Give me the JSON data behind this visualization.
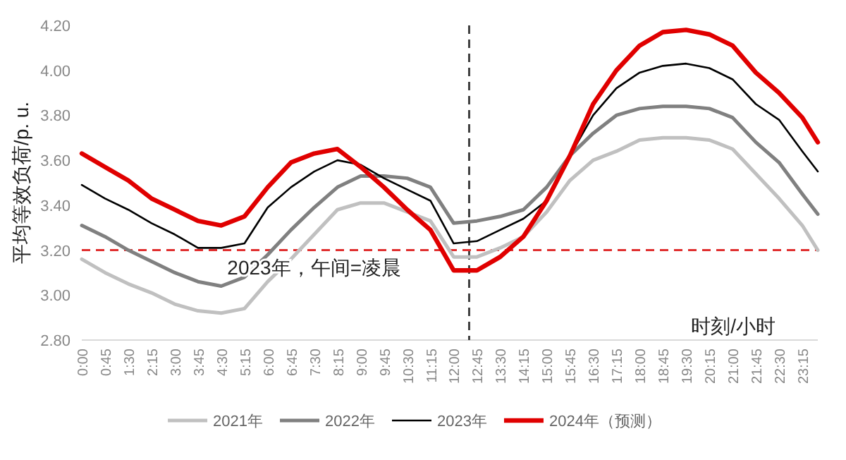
{
  "chart_data": {
    "type": "line",
    "ylabel": "平均等效负荷/p. u.",
    "xlabel": "时刻/小时",
    "xlim": [
      0,
      23.75
    ],
    "xticks": [
      {
        "value": 0,
        "label": "0:00"
      },
      {
        "value": 0.75,
        "label": "0:45"
      },
      {
        "value": 1.5,
        "label": "1:30"
      },
      {
        "value": 2.25,
        "label": "2:15"
      },
      {
        "value": 3,
        "label": "3:00"
      },
      {
        "value": 3.75,
        "label": "3:45"
      },
      {
        "value": 4.5,
        "label": "4:30"
      },
      {
        "value": 5.25,
        "label": "5:15"
      },
      {
        "value": 6,
        "label": "6:00"
      },
      {
        "value": 6.75,
        "label": "6:45"
      },
      {
        "value": 7.5,
        "label": "7:30"
      },
      {
        "value": 8.25,
        "label": "8:15"
      },
      {
        "value": 9,
        "label": "9:00"
      },
      {
        "value": 9.75,
        "label": "9:45"
      },
      {
        "value": 10.5,
        "label": "10:30"
      },
      {
        "value": 11.25,
        "label": "11:15"
      },
      {
        "value": 12,
        "label": "12:00"
      },
      {
        "value": 12.75,
        "label": "12:45"
      },
      {
        "value": 13.5,
        "label": "13:30"
      },
      {
        "value": 14.25,
        "label": "14:15"
      },
      {
        "value": 15,
        "label": "15:00"
      },
      {
        "value": 15.75,
        "label": "15:45"
      },
      {
        "value": 16.5,
        "label": "16:30"
      },
      {
        "value": 17.25,
        "label": "17:15"
      },
      {
        "value": 18,
        "label": "18:00"
      },
      {
        "value": 18.75,
        "label": "18:45"
      },
      {
        "value": 19.5,
        "label": "19:30"
      },
      {
        "value": 20.25,
        "label": "20:15"
      },
      {
        "value": 21,
        "label": "21:00"
      },
      {
        "value": 21.75,
        "label": "21:45"
      },
      {
        "value": 22.5,
        "label": "22:30"
      },
      {
        "value": 23.25,
        "label": "23:15"
      }
    ],
    "ylim": [
      2.8,
      4.2
    ],
    "yticks": [
      {
        "value": 2.8,
        "label": "2.80"
      },
      {
        "value": 3.0,
        "label": "3.00"
      },
      {
        "value": 3.2,
        "label": "3.20"
      },
      {
        "value": 3.4,
        "label": "3.40"
      },
      {
        "value": 3.6,
        "label": "3.60"
      },
      {
        "value": 3.8,
        "label": "3.80"
      },
      {
        "value": 4.0,
        "label": "4.00"
      },
      {
        "value": 4.2,
        "label": "4.20"
      }
    ],
    "x": [
      0,
      0.75,
      1.5,
      2.25,
      3,
      3.75,
      4.5,
      5.25,
      6,
      6.75,
      7.5,
      8.25,
      9,
      9.75,
      10.5,
      11.25,
      12,
      12.75,
      13.5,
      14.25,
      15,
      15.75,
      16.5,
      17.25,
      18,
      18.75,
      19.5,
      20.25,
      21,
      21.75,
      22.5,
      23.25,
      23.75
    ],
    "series": [
      {
        "name": "2021年",
        "color": "#c0c0c0",
        "values": [
          3.16,
          3.1,
          3.05,
          3.01,
          2.96,
          2.93,
          2.92,
          2.94,
          3.06,
          3.16,
          3.27,
          3.38,
          3.41,
          3.41,
          3.37,
          3.33,
          3.17,
          3.17,
          3.21,
          3.26,
          3.37,
          3.51,
          3.6,
          3.64,
          3.69,
          3.7,
          3.7,
          3.69,
          3.65,
          3.54,
          3.43,
          3.31,
          3.2
        ]
      },
      {
        "name": "2022年",
        "color": "#808080",
        "values": [
          3.31,
          3.26,
          3.2,
          3.15,
          3.1,
          3.06,
          3.04,
          3.08,
          3.18,
          3.29,
          3.39,
          3.48,
          3.53,
          3.53,
          3.52,
          3.48,
          3.32,
          3.33,
          3.35,
          3.38,
          3.48,
          3.62,
          3.72,
          3.8,
          3.83,
          3.84,
          3.84,
          3.83,
          3.79,
          3.68,
          3.59,
          3.45,
          3.36
        ]
      },
      {
        "name": "2023年",
        "color": "#000000",
        "values": [
          3.49,
          3.43,
          3.38,
          3.32,
          3.27,
          3.21,
          3.21,
          3.23,
          3.39,
          3.48,
          3.55,
          3.6,
          3.58,
          3.52,
          3.47,
          3.42,
          3.23,
          3.24,
          3.29,
          3.34,
          3.42,
          3.62,
          3.8,
          3.92,
          3.99,
          4.02,
          4.03,
          4.01,
          3.96,
          3.85,
          3.78,
          3.64,
          3.55
        ]
      },
      {
        "name": "2024年（预测）",
        "color": "#e00000",
        "values": [
          3.63,
          3.57,
          3.51,
          3.43,
          3.38,
          3.33,
          3.31,
          3.35,
          3.48,
          3.59,
          3.63,
          3.65,
          3.57,
          3.48,
          3.38,
          3.29,
          3.11,
          3.11,
          3.17,
          3.26,
          3.42,
          3.62,
          3.85,
          4.0,
          4.11,
          4.17,
          4.18,
          4.16,
          4.11,
          3.99,
          3.9,
          3.79,
          3.68
        ]
      }
    ],
    "ref_lines": [
      {
        "axis": "y",
        "value": 3.2,
        "color": "#e03030",
        "line_style": "dashed"
      },
      {
        "axis": "x",
        "value": 12.5,
        "color": "#404040",
        "line_style": "dashed"
      }
    ],
    "annotations": [
      {
        "text": "2023年，午间=凌晨",
        "x": 7.5,
        "y": 3.2
      }
    ],
    "legend": "bottom"
  }
}
